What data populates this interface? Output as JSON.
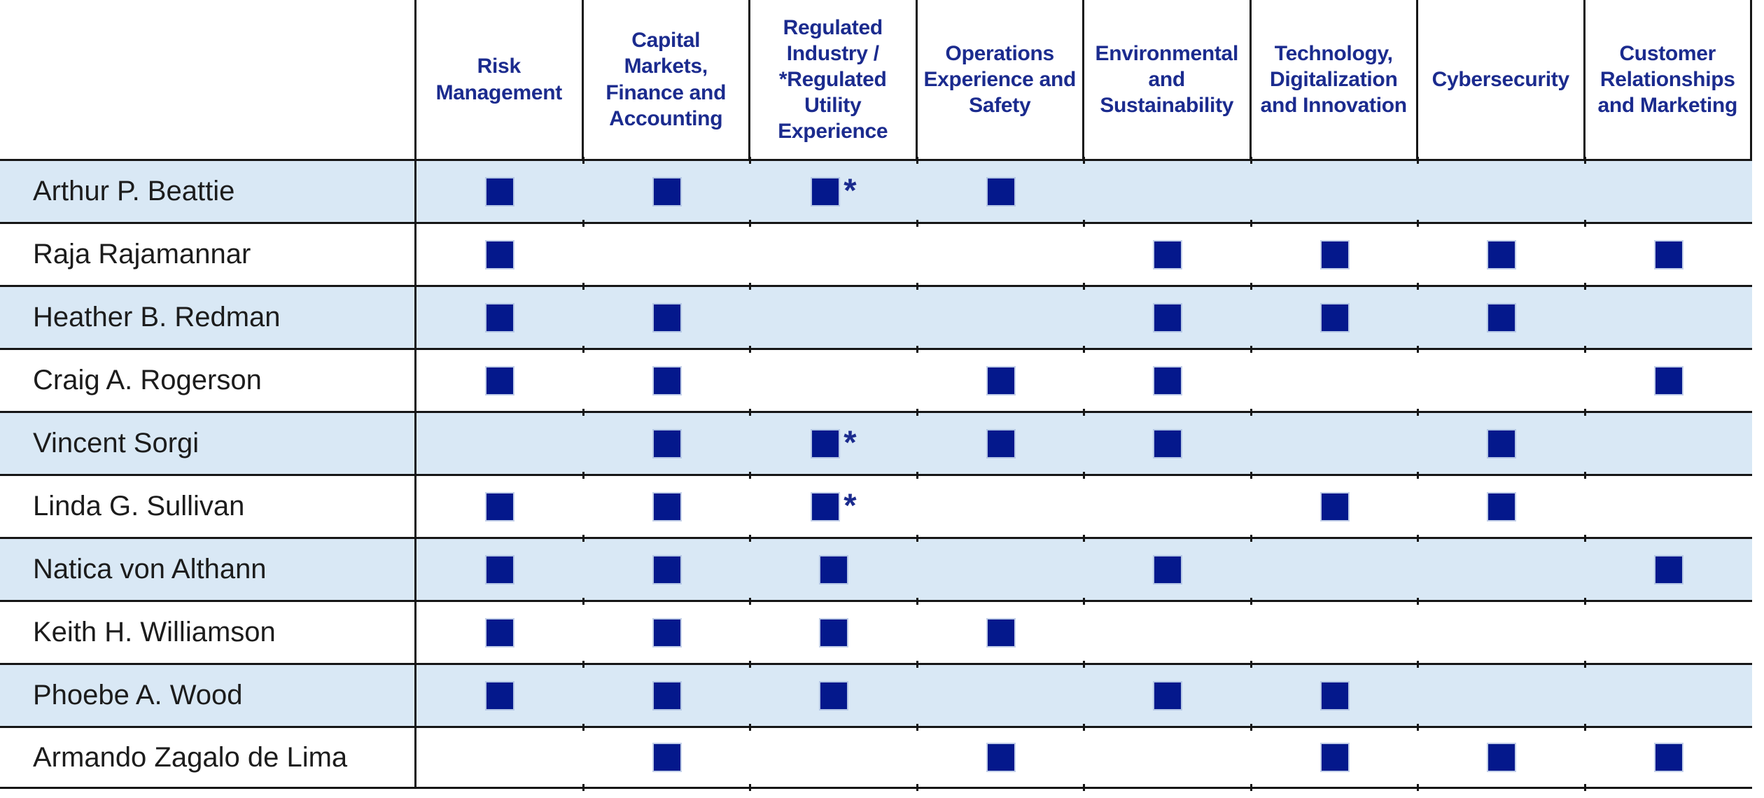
{
  "chart_data": {
    "type": "table",
    "description_visible": "Director skills matrix: rows are director names, columns are skill areas, filled navy squares mark possessed skills, asterisk marks regulated utility experience",
    "columns": [
      "Risk\nManagement",
      "Capital\nMarkets,\nFinance and\nAccounting",
      "Regulated\nIndustry /\n*Regulated\nUtility\nExperience",
      "Operations\nExperience and\nSafety",
      "Environmental\nand\nSustainability",
      "Technology,\nDigitalization\nand Innovation",
      "Cybersecurity",
      "Customer\nRelationships\nand Marketing"
    ],
    "cell_encoding": {
      "0": "empty",
      "1": "filled-square",
      "2": "filled-square-with-asterisk"
    },
    "asterisk_symbol": "*",
    "rows": [
      {
        "name": "Arthur P. Beattie",
        "skills": [
          1,
          1,
          2,
          1,
          0,
          0,
          0,
          0
        ]
      },
      {
        "name": "Raja Rajamannar",
        "skills": [
          1,
          0,
          0,
          0,
          1,
          1,
          1,
          1
        ]
      },
      {
        "name": "Heather B. Redman",
        "skills": [
          1,
          1,
          0,
          0,
          1,
          1,
          1,
          0
        ]
      },
      {
        "name": "Craig A. Rogerson",
        "skills": [
          1,
          1,
          0,
          1,
          1,
          0,
          0,
          1
        ]
      },
      {
        "name": "Vincent Sorgi",
        "skills": [
          0,
          1,
          2,
          1,
          1,
          0,
          1,
          0
        ]
      },
      {
        "name": "Linda G. Sullivan",
        "skills": [
          1,
          1,
          2,
          0,
          0,
          1,
          1,
          0
        ]
      },
      {
        "name": "Natica von Althann",
        "skills": [
          1,
          1,
          1,
          0,
          1,
          0,
          0,
          1
        ]
      },
      {
        "name": "Keith H. Williamson",
        "skills": [
          1,
          1,
          1,
          1,
          0,
          0,
          0,
          0
        ]
      },
      {
        "name": "Phoebe A. Wood",
        "skills": [
          1,
          1,
          1,
          0,
          1,
          1,
          0,
          0
        ]
      },
      {
        "name": "Armando Zagalo de Lima",
        "skills": [
          0,
          1,
          0,
          1,
          0,
          1,
          1,
          1
        ]
      }
    ]
  },
  "colors": {
    "header_text": "#1b2b8e",
    "marker_fill": "#04188c",
    "asterisk": "#1b2b8e",
    "stripe_row_bg": "#d9e8f5",
    "plain_row_bg": "#ffffff",
    "grid_line": "#161616",
    "name_text": "#1c1c1c"
  }
}
